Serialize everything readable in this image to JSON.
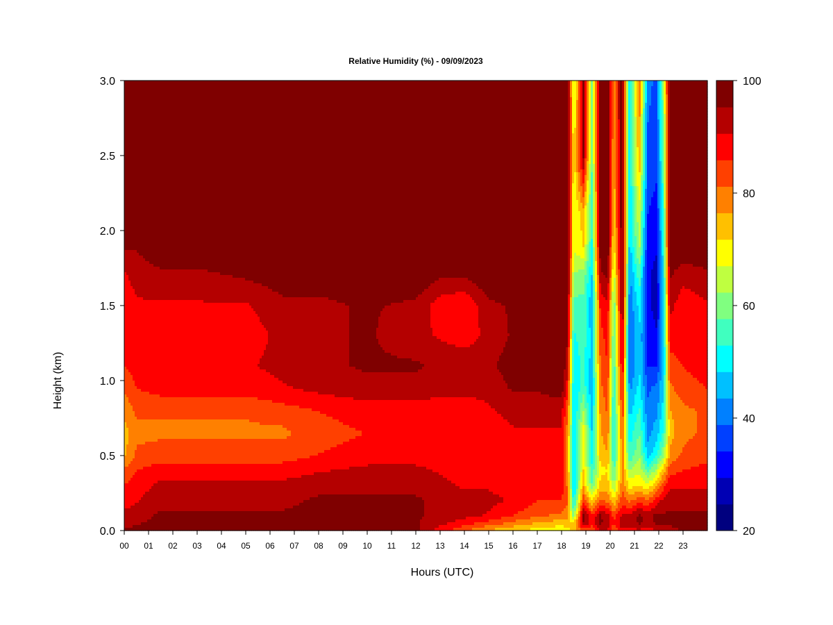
{
  "chart_data": {
    "type": "heatmap",
    "title": "Relative Humidity (%) - 09/09/2023",
    "xlabel": "Hours (UTC)",
    "ylabel": "Height (km)",
    "x_ticks": [
      "00",
      "01",
      "02",
      "03",
      "04",
      "05",
      "06",
      "07",
      "08",
      "09",
      "10",
      "11",
      "12",
      "13",
      "14",
      "15",
      "16",
      "17",
      "18",
      "19",
      "20",
      "21",
      "22",
      "23"
    ],
    "xlim": [
      0,
      24
    ],
    "y_ticks": [
      "0.0",
      "0.5",
      "1.0",
      "1.5",
      "2.0",
      "2.5",
      "3.0"
    ],
    "ylim": [
      0,
      3
    ],
    "colorbar": {
      "ticks": [
        "20",
        "40",
        "60",
        "80",
        "100"
      ],
      "range": [
        20,
        100
      ],
      "levels": [
        "#00007f",
        "#0000b4",
        "#0000ff",
        "#0040ff",
        "#0080ff",
        "#00c0ff",
        "#00ffff",
        "#40ffbf",
        "#80ff80",
        "#bfff40",
        "#ffff00",
        "#ffc000",
        "#ff8000",
        "#ff4000",
        "#ff0000",
        "#b40000",
        "#7f0000"
      ]
    },
    "profile_heights_km": [
      0.0,
      0.05,
      0.1,
      0.2,
      0.3,
      0.4,
      0.5,
      0.65,
      0.8,
      0.95,
      1.1,
      1.3,
      1.5,
      1.7,
      1.9,
      2.1,
      2.5,
      3.0
    ],
    "profiles": [
      {
        "hour": 0.0,
        "rh": [
          96,
          94,
          92,
          88,
          86,
          82,
          76,
          74,
          78,
          82,
          86,
          86,
          88,
          90,
          96,
          100,
          100,
          100
        ]
      },
      {
        "hour": 0.5,
        "rh": [
          96,
          95,
          94,
          90,
          88,
          86,
          82,
          80,
          82,
          86,
          88,
          90,
          90,
          92,
          96,
          100,
          100,
          100
        ]
      },
      {
        "hour": 1.5,
        "rh": [
          97,
          96,
          96,
          94,
          92,
          88,
          84,
          80,
          82,
          88,
          90,
          88,
          90,
          94,
          100,
          100,
          100,
          100
        ]
      },
      {
        "hour": 3.0,
        "rh": [
          97,
          96,
          96,
          94,
          92,
          88,
          84,
          80,
          82,
          88,
          90,
          88,
          90,
          94,
          100,
          100,
          100,
          100
        ]
      },
      {
        "hour": 5.0,
        "rh": [
          97,
          96,
          96,
          94,
          92,
          88,
          84,
          80,
          82,
          88,
          90,
          88,
          90,
          96,
          100,
          100,
          100,
          100
        ]
      },
      {
        "hour": 6.5,
        "rh": [
          97,
          97,
          96,
          94,
          92,
          88,
          84,
          80,
          84,
          90,
          92,
          92,
          94,
          98,
          100,
          100,
          100,
          100
        ]
      },
      {
        "hour": 8.0,
        "rh": [
          98,
          97,
          97,
          96,
          94,
          90,
          86,
          84,
          86,
          92,
          94,
          94,
          94,
          98,
          100,
          100,
          100,
          100
        ]
      },
      {
        "hour": 10.0,
        "rh": [
          98,
          97,
          97,
          96,
          94,
          92,
          88,
          86,
          88,
          94,
          96,
          96,
          96,
          100,
          100,
          100,
          100,
          100
        ]
      },
      {
        "hour": 12.0,
        "rh": [
          97,
          96,
          96,
          96,
          94,
          92,
          88,
          86,
          88,
          94,
          96,
          92,
          94,
          100,
          100,
          100,
          100,
          100
        ]
      },
      {
        "hour": 13.0,
        "rh": [
          88,
          92,
          94,
          94,
          92,
          90,
          88,
          86,
          88,
          92,
          94,
          90,
          88,
          96,
          100,
          100,
          100,
          100
        ]
      },
      {
        "hour": 14.0,
        "rh": [
          82,
          88,
          92,
          92,
          90,
          88,
          86,
          86,
          88,
          92,
          94,
          88,
          86,
          96,
          100,
          100,
          100,
          100
        ]
      },
      {
        "hour": 15.0,
        "rh": [
          76,
          84,
          90,
          92,
          90,
          88,
          86,
          88,
          90,
          92,
          94,
          92,
          94,
          100,
          100,
          100,
          100,
          100
        ]
      },
      {
        "hour": 16.0,
        "rh": [
          72,
          80,
          86,
          90,
          88,
          88,
          88,
          90,
          92,
          96,
          98,
          96,
          96,
          100,
          100,
          100,
          100,
          100
        ]
      },
      {
        "hour": 17.0,
        "rh": [
          70,
          76,
          82,
          86,
          86,
          88,
          88,
          90,
          92,
          96,
          100,
          100,
          100,
          100,
          100,
          100,
          100,
          100
        ]
      },
      {
        "hour": 18.0,
        "rh": [
          68,
          74,
          80,
          86,
          88,
          90,
          90,
          90,
          92,
          98,
          100,
          100,
          100,
          100,
          100,
          100,
          100,
          100
        ]
      },
      {
        "hour": 18.25,
        "rh": [
          70,
          74,
          78,
          82,
          80,
          78,
          76,
          78,
          82,
          88,
          92,
          96,
          98,
          100,
          100,
          100,
          100,
          100
        ]
      },
      {
        "hour": 18.5,
        "rh": [
          74,
          72,
          60,
          50,
          46,
          46,
          48,
          48,
          48,
          48,
          50,
          52,
          56,
          62,
          68,
          66,
          70,
          64
        ]
      },
      {
        "hour": 18.9,
        "rh": [
          82,
          96,
          96,
          84,
          76,
          72,
          70,
          70,
          62,
          56,
          54,
          56,
          56,
          60,
          72,
          74,
          96,
          96
        ]
      },
      {
        "hour": 19.25,
        "rh": [
          82,
          88,
          86,
          72,
          58,
          54,
          50,
          48,
          46,
          44,
          46,
          46,
          44,
          48,
          52,
          54,
          58,
          58
        ]
      },
      {
        "hour": 19.6,
        "rh": [
          92,
          96,
          96,
          82,
          74,
          70,
          74,
          76,
          78,
          80,
          82,
          84,
          88,
          94,
          100,
          100,
          100,
          100
        ]
      },
      {
        "hour": 19.9,
        "rh": [
          90,
          94,
          92,
          80,
          74,
          72,
          76,
          80,
          82,
          84,
          86,
          88,
          90,
          96,
          100,
          100,
          100,
          100
        ]
      },
      {
        "hour": 20.15,
        "rh": [
          80,
          86,
          84,
          72,
          62,
          56,
          52,
          50,
          50,
          52,
          54,
          56,
          58,
          64,
          70,
          72,
          76,
          78
        ]
      },
      {
        "hour": 20.5,
        "rh": [
          90,
          94,
          92,
          84,
          80,
          78,
          80,
          82,
          86,
          88,
          92,
          94,
          98,
          100,
          100,
          100,
          100,
          100
        ]
      },
      {
        "hour": 20.8,
        "rh": [
          88,
          94,
          92,
          80,
          70,
          62,
          54,
          50,
          46,
          42,
          38,
          38,
          40,
          42,
          46,
          48,
          50,
          50
        ]
      },
      {
        "hour": 21.2,
        "rh": [
          90,
          96,
          96,
          84,
          72,
          66,
          62,
          58,
          54,
          50,
          48,
          48,
          50,
          56,
          64,
          66,
          76,
          80
        ]
      },
      {
        "hour": 21.55,
        "rh": [
          88,
          94,
          94,
          82,
          68,
          56,
          46,
          42,
          40,
          38,
          34,
          32,
          30,
          30,
          32,
          34,
          38,
          40
        ]
      },
      {
        "hour": 21.9,
        "rh": [
          90,
          96,
          96,
          88,
          76,
          64,
          52,
          46,
          42,
          40,
          34,
          30,
          28,
          28,
          30,
          32,
          36,
          38
        ]
      },
      {
        "hour": 22.2,
        "rh": [
          92,
          96,
          96,
          92,
          84,
          74,
          62,
          54,
          50,
          48,
          46,
          46,
          48,
          50,
          52,
          54,
          58,
          62
        ]
      },
      {
        "hour": 22.45,
        "rh": [
          94,
          96,
          96,
          94,
          90,
          84,
          78,
          74,
          76,
          80,
          84,
          88,
          92,
          96,
          100,
          100,
          100,
          100
        ]
      },
      {
        "hour": 23.0,
        "rh": [
          96,
          96,
          96,
          94,
          90,
          86,
          82,
          80,
          80,
          84,
          86,
          88,
          88,
          92,
          100,
          100,
          100,
          100
        ]
      },
      {
        "hour": 24.0,
        "rh": [
          96,
          96,
          96,
          94,
          90,
          88,
          84,
          82,
          82,
          86,
          88,
          88,
          90,
          94,
          100,
          100,
          100,
          100
        ]
      }
    ]
  }
}
